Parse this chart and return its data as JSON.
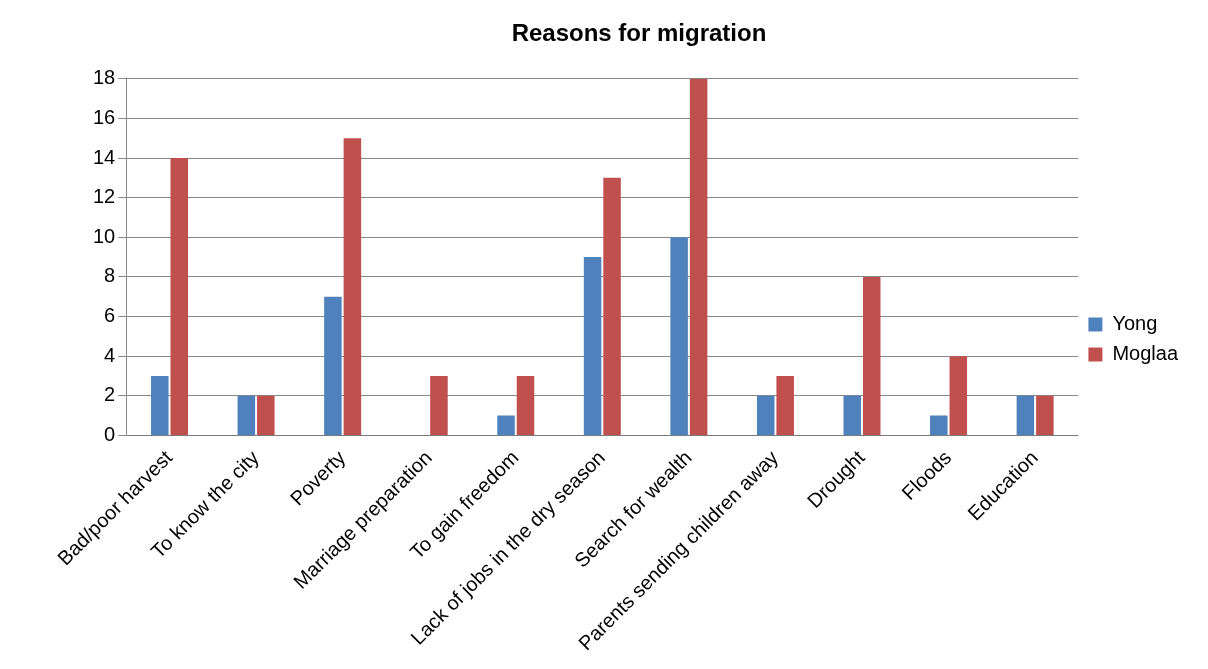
{
  "chart_data": {
    "type": "bar",
    "title": "Reasons for migration",
    "categories": [
      "Bad/poor harvest",
      "To know the city",
      "Poverty",
      "Marriage preparation",
      "To gain freedom",
      "Lack of jobs in the dry season",
      "Search for wealth",
      "Parents sending children away",
      "Drought",
      "Floods",
      "Education"
    ],
    "series": [
      {
        "name": "Yong",
        "color": "#4f81bd",
        "values": [
          3,
          2,
          7,
          0,
          1,
          9,
          10,
          2,
          2,
          1,
          2
        ]
      },
      {
        "name": "Moglaa",
        "color": "#c0504d",
        "values": [
          14,
          2,
          15,
          3,
          3,
          13,
          18,
          3,
          8,
          4,
          2
        ]
      }
    ],
    "ylim": [
      0,
      18
    ],
    "yticks": [
      0,
      2,
      4,
      6,
      8,
      10,
      12,
      14,
      16,
      18
    ],
    "grid": "y",
    "legend": "right"
  }
}
